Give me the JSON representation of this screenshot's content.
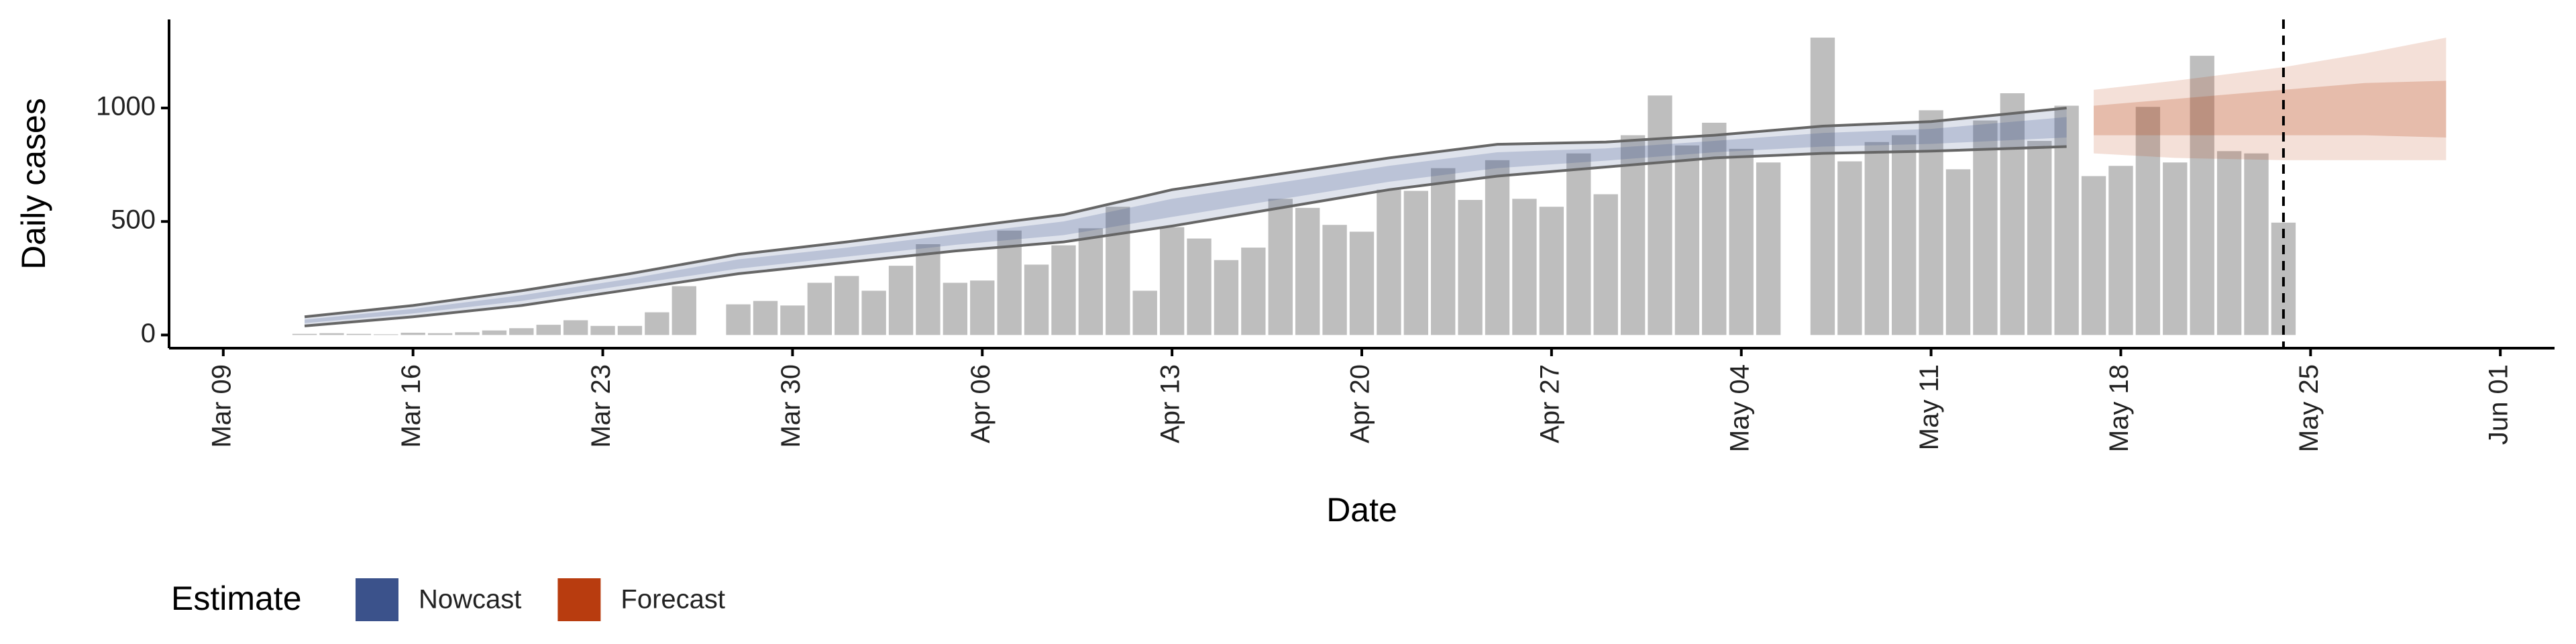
{
  "chart_data": {
    "type": "bar",
    "x_label": "Date",
    "y_label": "Daily cases",
    "legend_title": "Estimate",
    "legend_position": "bottom-left",
    "bar_color": "#bebebe",
    "categories": [
      "Mar 12",
      "Mar 13",
      "Mar 14",
      "Mar 15",
      "Mar 16",
      "Mar 17",
      "Mar 18",
      "Mar 19",
      "Mar 20",
      "Mar 21",
      "Mar 22",
      "Mar 23",
      "Mar 24",
      "Mar 25",
      "Mar 26",
      "Mar 27",
      "Mar 28",
      "Mar 29",
      "Mar 30",
      "Mar 31",
      "Apr 01",
      "Apr 02",
      "Apr 03",
      "Apr 04",
      "Apr 05",
      "Apr 06",
      "Apr 07",
      "Apr 08",
      "Apr 09",
      "Apr 10",
      "Apr 11",
      "Apr 12",
      "Apr 13",
      "Apr 14",
      "Apr 15",
      "Apr 16",
      "Apr 17",
      "Apr 18",
      "Apr 19",
      "Apr 20",
      "Apr 21",
      "Apr 22",
      "Apr 23",
      "Apr 24",
      "Apr 25",
      "Apr 26",
      "Apr 27",
      "Apr 28",
      "Apr 29",
      "Apr 30",
      "May 01",
      "May 02",
      "May 03",
      "May 04",
      "May 05",
      "May 06",
      "May 07",
      "May 08",
      "May 09",
      "May 10",
      "May 11",
      "May 12",
      "May 13",
      "May 14",
      "May 15",
      "May 16",
      "May 17",
      "May 18",
      "May 19",
      "May 20",
      "May 21",
      "May 22",
      "May 23",
      "May 24"
    ],
    "values": [
      5,
      8,
      5,
      3,
      10,
      8,
      12,
      20,
      30,
      45,
      65,
      40,
      40,
      100,
      215,
      null,
      135,
      150,
      130,
      230,
      260,
      195,
      305,
      400,
      230,
      240,
      460,
      310,
      395,
      470,
      565,
      195,
      475,
      425,
      330,
      385,
      600,
      560,
      485,
      455,
      640,
      635,
      735,
      595,
      770,
      600,
      565,
      800,
      620,
      880,
      1055,
      835,
      935,
      820,
      760,
      null,
      1310,
      765,
      850,
      880,
      990,
      730,
      945,
      1065,
      855,
      1010,
      700,
      745,
      1005,
      760,
      1230,
      810,
      800,
      495
    ],
    "series": [
      {
        "name": "Nowcast",
        "color": "#3b528b",
        "x": [
          "Mar 12",
          "Mar 16",
          "Mar 20",
          "Mar 24",
          "Mar 28",
          "Apr 01",
          "Apr 05",
          "Apr 09",
          "Apr 13",
          "Apr 17",
          "Apr 21",
          "Apr 25",
          "Apr 29",
          "May 03",
          "May 07",
          "May 11",
          "May 16"
        ],
        "lower": [
          40,
          80,
          130,
          200,
          270,
          320,
          370,
          410,
          480,
          560,
          640,
          700,
          740,
          780,
          800,
          810,
          830
        ],
        "upper": [
          80,
          130,
          195,
          270,
          355,
          410,
          470,
          530,
          640,
          710,
          780,
          840,
          850,
          880,
          920,
          940,
          1000
        ],
        "lower50": [
          52,
          95,
          150,
          222,
          292,
          345,
          397,
          440,
          520,
          598,
          675,
          735,
          768,
          805,
          830,
          842,
          870
        ],
        "upper50": [
          68,
          115,
          175,
          248,
          333,
          385,
          443,
          500,
          600,
          672,
          745,
          805,
          822,
          855,
          890,
          908,
          960
        ]
      },
      {
        "name": "Forecast",
        "color": "#b83c0f",
        "x": [
          "May 17",
          "May 20",
          "May 24",
          "May 27",
          "May 30"
        ],
        "lower": [
          800,
          780,
          770,
          770,
          770
        ],
        "upper": [
          1080,
          1120,
          1180,
          1240,
          1310
        ],
        "lower50": [
          880,
          880,
          880,
          880,
          870
        ],
        "upper50": [
          1010,
          1040,
          1080,
          1110,
          1120
        ]
      }
    ],
    "reference_date": "May 24",
    "xlim": [
      "Mar 07",
      "Jun 03"
    ],
    "xticks": [
      "Mar 09",
      "Mar 16",
      "Mar 23",
      "Mar 30",
      "Apr 06",
      "Apr 13",
      "Apr 20",
      "Apr 27",
      "May 04",
      "May 11",
      "May 18",
      "May 25",
      "Jun 01"
    ],
    "ylim": [
      -58,
      1390
    ],
    "yticks": [
      0,
      500,
      1000
    ]
  }
}
